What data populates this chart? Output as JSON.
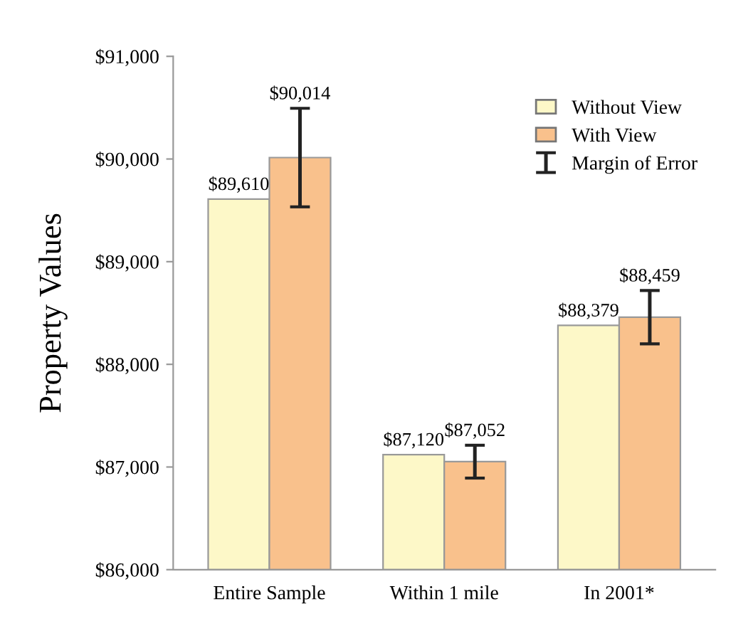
{
  "chart_data": {
    "type": "bar",
    "ylabel": "Property Values",
    "categories": [
      "Entire Sample",
      "Within 1 mile",
      "In 2001*"
    ],
    "series": [
      {
        "name": "Without View",
        "color": "#fdf8c8",
        "values": [
          89610,
          87120,
          88379
        ],
        "value_labels": [
          "$89,610",
          "$87,120",
          "$88,379"
        ]
      },
      {
        "name": "With View",
        "color": "#f9c18c",
        "values": [
          90014,
          87052,
          88459
        ],
        "value_labels": [
          "$90,014",
          "$87,052",
          "$88,459"
        ],
        "errors": [
          480,
          160,
          260
        ]
      }
    ],
    "annotations": [
      "Margin of Error"
    ],
    "ylim": [
      86000,
      91000
    ],
    "yticks": [
      {
        "value": 86000,
        "label": "$86,000"
      },
      {
        "value": 87000,
        "label": "$87,000"
      },
      {
        "value": 88000,
        "label": "$88,000"
      },
      {
        "value": 89000,
        "label": "$89,000"
      },
      {
        "value": 90000,
        "label": "$90,000"
      },
      {
        "value": 91000,
        "label": "$91,000"
      }
    ],
    "grid": false,
    "legend": "top right"
  }
}
